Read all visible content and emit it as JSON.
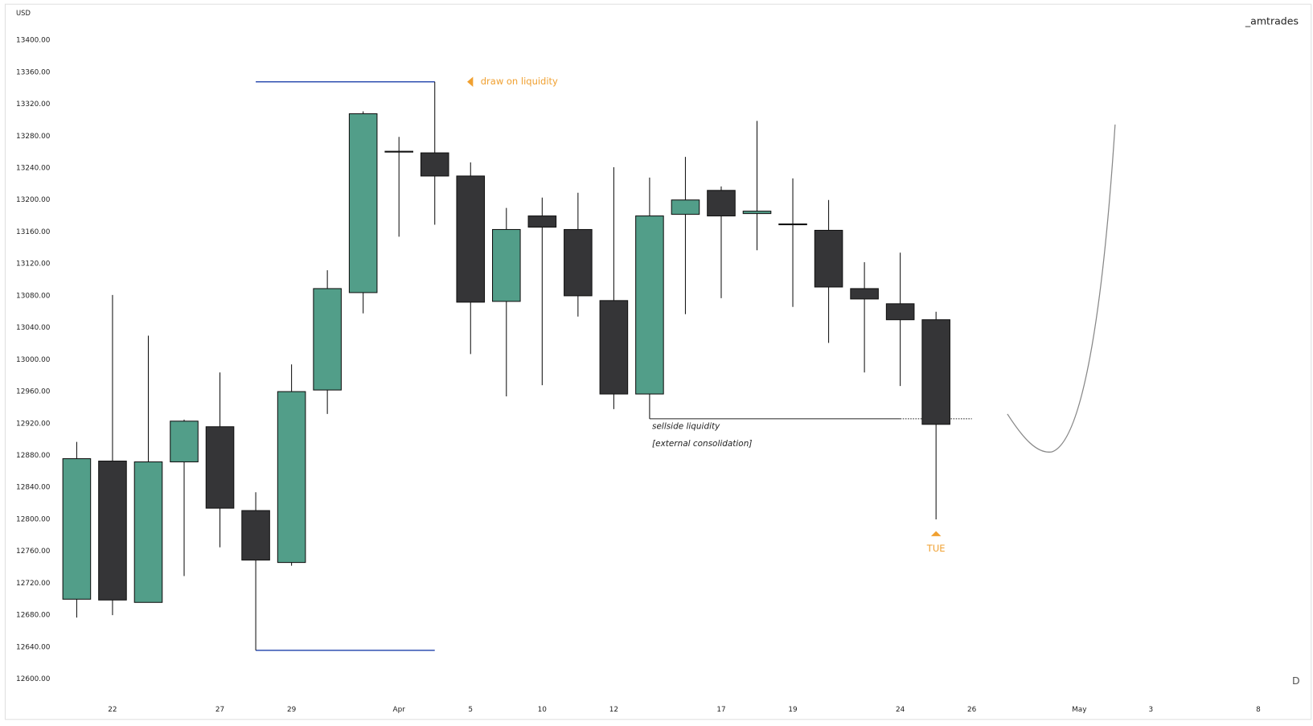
{
  "chart_data": {
    "type": "candlestick",
    "watermark": "_amtrades",
    "y_axis_label": "USD",
    "interval": "D",
    "categories": [
      null,
      "22",
      null,
      null,
      "27",
      null,
      "29",
      null,
      null,
      "Apr",
      null,
      "5",
      null,
      "10",
      null,
      "12",
      null,
      null,
      "17",
      null,
      "19",
      null,
      null,
      "24",
      null,
      "26",
      null,
      null,
      "May",
      null,
      "3",
      null,
      null,
      "8",
      null
    ],
    "open": [
      12700,
      12873,
      12696,
      12872,
      12916,
      12811,
      12746,
      12962,
      13084,
      13261,
      13259,
      13230,
      13073,
      13180,
      13163,
      13074,
      12957,
      13182,
      13212,
      13183,
      13170,
      13162,
      13089,
      13070,
      13050,
      null,
      null,
      null,
      null,
      null,
      null,
      null,
      null,
      null,
      null
    ],
    "high": [
      12897,
      13081,
      13030,
      12925,
      12984,
      12834,
      12994,
      13112,
      13311,
      13279,
      13348,
      13247,
      13190,
      13203,
      13209,
      13241,
      13228,
      13254,
      13217,
      13299,
      13227,
      13200,
      13122,
      13134,
      13060,
      null,
      null,
      null,
      null,
      null,
      null,
      null,
      null,
      null,
      null
    ],
    "low": [
      12677,
      12680,
      12696,
      12729,
      12765,
      12636,
      12742,
      12932,
      13058,
      13154,
      13169,
      13007,
      12954,
      12968,
      13054,
      12938,
      12926,
      13057,
      13077,
      13137,
      13066,
      13021,
      12984,
      12967,
      12800,
      null,
      null,
      null,
      null,
      null,
      null,
      null,
      null,
      null,
      null
    ],
    "close": [
      12876,
      12699,
      12872,
      12923,
      12814,
      12749,
      12960,
      13089,
      13308,
      13261,
      13230,
      13072,
      13163,
      13166,
      13080,
      12957,
      13180,
      13200,
      13180,
      13186,
      13169,
      13091,
      13076,
      13050,
      12919,
      null,
      null,
      null,
      null,
      null,
      null,
      null,
      null,
      null,
      null
    ],
    "up_color": "#529e89",
    "down_color": "#353537",
    "ylim": [
      12580,
      13430
    ],
    "yticks": [
      {
        "value": 12600,
        "label": "12600.00"
      },
      {
        "value": 12640,
        "label": "12640.00"
      },
      {
        "value": 12680,
        "label": "12680.00"
      },
      {
        "value": 12720,
        "label": "12720.00"
      },
      {
        "value": 12760,
        "label": "12760.00"
      },
      {
        "value": 12800,
        "label": "12800.00"
      },
      {
        "value": 12840,
        "label": "12840.00"
      },
      {
        "value": 12880,
        "label": "12880.00"
      },
      {
        "value": 12920,
        "label": "12920.00"
      },
      {
        "value": 12960,
        "label": "12960.00"
      },
      {
        "value": 13000,
        "label": "13000.00"
      },
      {
        "value": 13040,
        "label": "13040.00"
      },
      {
        "value": 13080,
        "label": "13080.00"
      },
      {
        "value": 13120,
        "label": "13120.00"
      },
      {
        "value": 13160,
        "label": "13160.00"
      },
      {
        "value": 13200,
        "label": "13200.00"
      },
      {
        "value": 13240,
        "label": "13240.00"
      },
      {
        "value": 13280,
        "label": "13280.00"
      },
      {
        "value": 13320,
        "label": "13320.00"
      },
      {
        "value": 13360,
        "label": "13360.00"
      },
      {
        "value": 13400,
        "label": "13400.00"
      }
    ],
    "levels": [
      {
        "value": 13348,
        "color": "#2f4fb0"
      },
      {
        "value": 12636,
        "color": "#2f4fb0"
      },
      {
        "value": 12926,
        "color": "#222222",
        "labels": [
          "sellside liquidity",
          "[external consolidation]"
        ]
      }
    ],
    "markers": [
      {
        "text": "draw on liquidity",
        "color": "#f0a030"
      },
      {
        "text": "TUE",
        "color": "#f0a030"
      }
    ]
  }
}
